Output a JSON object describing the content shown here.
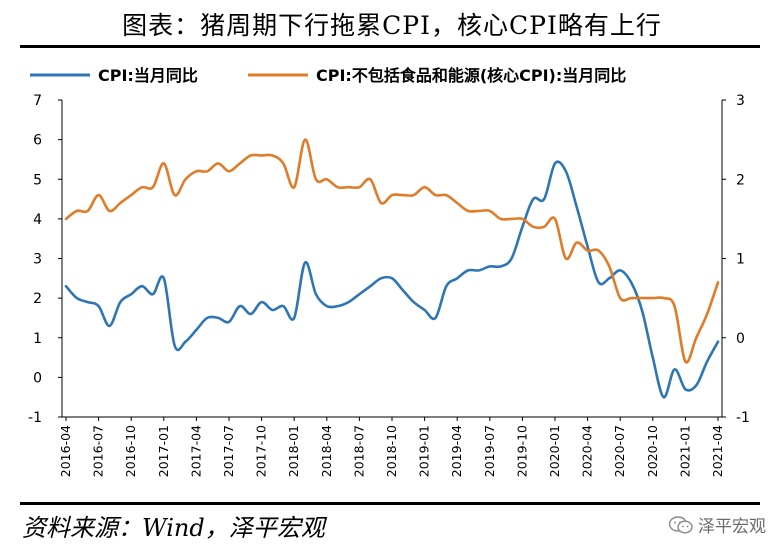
{
  "title": "图表：猪周期下行拖累CPI，核心CPI略有上行",
  "source": "资料来源：Wind，泽平宏观",
  "watermark": "泽平宏观",
  "chart_data": {
    "type": "line",
    "title": "图表：猪周期下行拖累CPI，核心CPI略有上行",
    "legend_placement": "top",
    "grid": false,
    "y_left": {
      "min": -1,
      "max": 7,
      "ticks": [
        -1,
        0,
        1,
        2,
        3,
        4,
        5,
        6,
        7
      ]
    },
    "y_right": {
      "min": -1,
      "max": 3,
      "ticks": [
        -1,
        0,
        1,
        2,
        3
      ]
    },
    "x_ticks": [
      "2016-04",
      "2016-07",
      "2016-10",
      "2017-01",
      "2017-04",
      "2017-07",
      "2017-10",
      "2018-01",
      "2018-04",
      "2018-07",
      "2018-10",
      "2019-01",
      "2019-04",
      "2019-07",
      "2019-10",
      "2020-01",
      "2020-04",
      "2020-07",
      "2020-10",
      "2021-01",
      "2021-04"
    ],
    "x": [
      "2016-04",
      "2016-05",
      "2016-06",
      "2016-07",
      "2016-08",
      "2016-09",
      "2016-10",
      "2016-11",
      "2016-12",
      "2017-01",
      "2017-02",
      "2017-03",
      "2017-04",
      "2017-05",
      "2017-06",
      "2017-07",
      "2017-08",
      "2017-09",
      "2017-10",
      "2017-11",
      "2017-12",
      "2018-01",
      "2018-02",
      "2018-03",
      "2018-04",
      "2018-05",
      "2018-06",
      "2018-07",
      "2018-08",
      "2018-09",
      "2018-10",
      "2018-11",
      "2018-12",
      "2019-01",
      "2019-02",
      "2019-03",
      "2019-04",
      "2019-05",
      "2019-06",
      "2019-07",
      "2019-08",
      "2019-09",
      "2019-10",
      "2019-11",
      "2019-12",
      "2020-01",
      "2020-02",
      "2020-03",
      "2020-04",
      "2020-05",
      "2020-06",
      "2020-07",
      "2020-08",
      "2020-09",
      "2020-10",
      "2020-11",
      "2020-12",
      "2021-01",
      "2021-02",
      "2021-03",
      "2021-04"
    ],
    "series": [
      {
        "name": "CPI:当月同比",
        "axis": "left",
        "color": "#2e75b6",
        "values": [
          2.3,
          2.0,
          1.9,
          1.8,
          1.3,
          1.9,
          2.1,
          2.3,
          2.1,
          2.5,
          0.8,
          0.9,
          1.2,
          1.5,
          1.5,
          1.4,
          1.8,
          1.6,
          1.9,
          1.7,
          1.8,
          1.5,
          2.9,
          2.1,
          1.8,
          1.8,
          1.9,
          2.1,
          2.3,
          2.5,
          2.5,
          2.2,
          1.9,
          1.7,
          1.5,
          2.3,
          2.5,
          2.7,
          2.7,
          2.8,
          2.8,
          3.0,
          3.8,
          4.5,
          4.5,
          5.4,
          5.2,
          4.3,
          3.3,
          2.4,
          2.5,
          2.7,
          2.4,
          1.7,
          0.5,
          -0.5,
          0.2,
          -0.3,
          -0.2,
          0.4,
          0.9
        ]
      },
      {
        "name": "CPI:不包括食品和能源(核心CPI):当月同比",
        "axis": "right",
        "color": "#e07b28",
        "values": [
          1.5,
          1.6,
          1.6,
          1.8,
          1.6,
          1.7,
          1.8,
          1.9,
          1.9,
          2.2,
          1.8,
          2.0,
          2.1,
          2.1,
          2.2,
          2.1,
          2.2,
          2.3,
          2.3,
          2.3,
          2.2,
          1.9,
          2.5,
          2.0,
          2.0,
          1.9,
          1.9,
          1.9,
          2.0,
          1.7,
          1.8,
          1.8,
          1.8,
          1.9,
          1.8,
          1.8,
          1.7,
          1.6,
          1.6,
          1.6,
          1.5,
          1.5,
          1.5,
          1.4,
          1.4,
          1.5,
          1.0,
          1.2,
          1.1,
          1.1,
          0.9,
          0.5,
          0.5,
          0.5,
          0.5,
          0.5,
          0.4,
          -0.3,
          0.0,
          0.3,
          0.7
        ]
      }
    ]
  }
}
